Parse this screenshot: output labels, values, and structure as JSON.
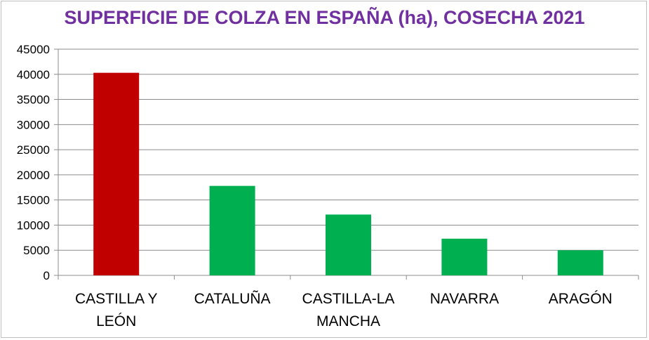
{
  "chart_data": {
    "type": "bar",
    "title": "SUPERFICIE DE COLZA EN ESPAÑA (ha), COSECHA 2021",
    "categories": [
      [
        "CASTILLA Y",
        "LEÓN"
      ],
      [
        "CATALUÑA"
      ],
      [
        "CASTILLA-LA",
        "MANCHA"
      ],
      [
        "NAVARRA"
      ],
      [
        "ARAGÓN"
      ]
    ],
    "values": [
      40300,
      17800,
      12100,
      7300,
      5000
    ],
    "bar_colors": [
      "#c00000",
      "#00b050",
      "#00b050",
      "#00b050",
      "#00b050"
    ],
    "ylim": [
      0,
      45000
    ],
    "yticks": [
      0,
      5000,
      10000,
      15000,
      20000,
      25000,
      30000,
      35000,
      40000,
      45000
    ],
    "grid": true,
    "xlabel": "",
    "ylabel": ""
  }
}
